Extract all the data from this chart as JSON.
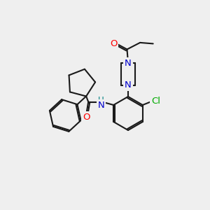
{
  "bg_color": "#efefef",
  "bond_color": "#1a1a1a",
  "bond_width": 1.5,
  "atom_colors": {
    "O": "#ff0000",
    "N": "#0000cc",
    "Cl": "#00aa00",
    "H": "#008080",
    "C": "#1a1a1a"
  },
  "font_size_atom": 9.5
}
